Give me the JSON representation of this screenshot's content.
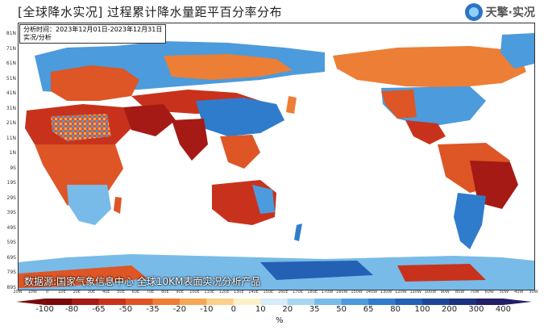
{
  "header": {
    "title": "[全球降水实况] 过程累计降水量距平百分率分布",
    "logo_text": "天擎·实况"
  },
  "info": {
    "line1": "分析时间：2023年12月01日-2023年12月31日",
    "line2": "实况/分析"
  },
  "source": "数据源:国家气象信息中心 全球10KM表面实况分析产品",
  "lat_labels": [
    "81N",
    "71N",
    "61N",
    "51N",
    "41N",
    "31N",
    "21N",
    "11N",
    "1N",
    "9S",
    "19S",
    "29S",
    "39S",
    "49S",
    "59S",
    "69S",
    "79S",
    "89S"
  ],
  "lon_labels": [
    "20W",
    "10W",
    "0",
    "10E",
    "20E",
    "30E",
    "40E",
    "50E",
    "60E",
    "70E",
    "80E",
    "90E",
    "100E",
    "110E",
    "120E",
    "130E",
    "140E",
    "150E",
    "160E",
    "170E",
    "180E",
    "170W",
    "160W",
    "150W",
    "140W",
    "130W",
    "120W",
    "110W",
    "100W",
    "90W",
    "80W",
    "70W",
    "60W",
    "50W",
    "40W",
    "30W"
  ],
  "legend": {
    "labels": [
      "-100",
      "-80",
      "-65",
      "-50",
      "-35",
      "-20",
      "-10",
      "0",
      "10",
      "20",
      "35",
      "50",
      "65",
      "80",
      "100",
      "200",
      "300",
      "400"
    ],
    "colors": [
      "#7a0a0a",
      "#a51a14",
      "#c8321c",
      "#de5526",
      "#ec7e36",
      "#f5a656",
      "#fbd08a",
      "#fdf0c8",
      "#d6ecf6",
      "#a8d6f0",
      "#78bbe8",
      "#4c9bdc",
      "#2f7ccc",
      "#2460b4",
      "#1e4698",
      "#1a3280",
      "#221e68"
    ],
    "unit": "%"
  }
}
